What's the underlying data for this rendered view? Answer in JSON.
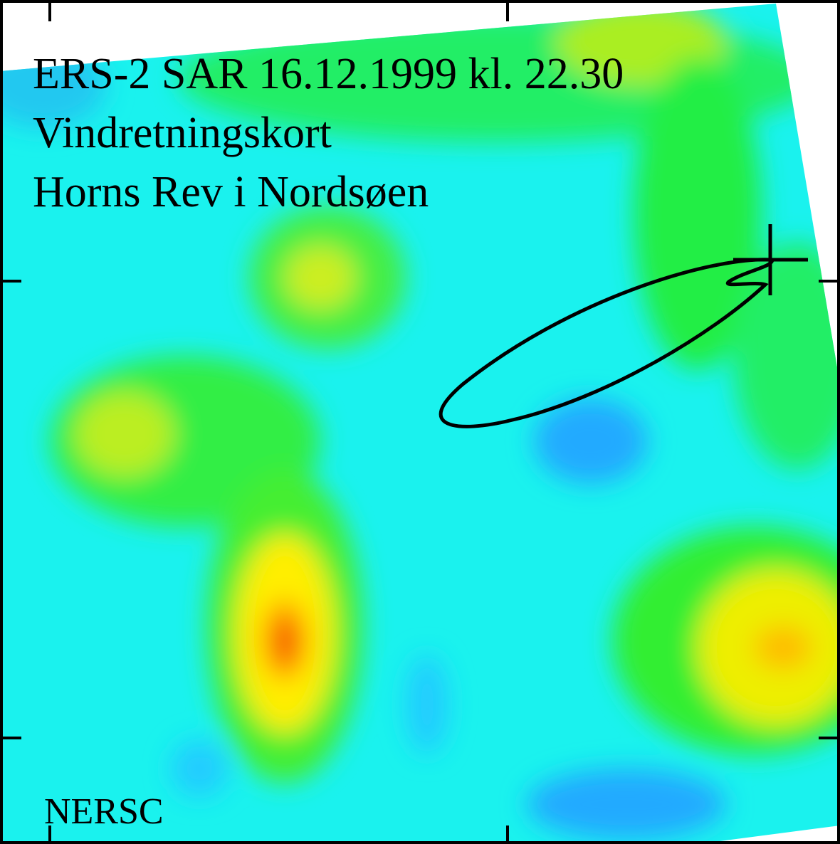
{
  "title_lines": [
    "ERS-2 SAR 16.12.1999 kl. 22.30",
    "Vindretningskort",
    "Horns Rev i Nordsøen"
  ],
  "credit": "NERSC"
}
